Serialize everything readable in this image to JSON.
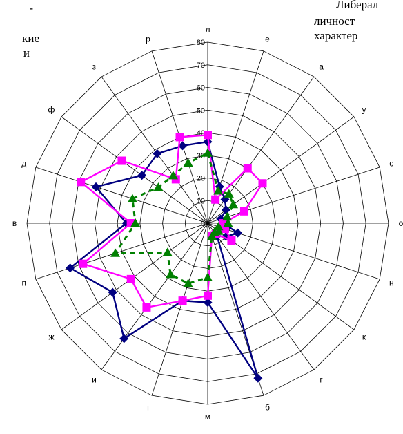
{
  "page_text": {
    "left_fragments": [
      "-",
      "кие",
      "и"
    ],
    "right_fragments": [
      "Либерал",
      "личност",
      "характер"
    ]
  },
  "chart_data": {
    "type": "radar",
    "title": "",
    "categories": [
      "л",
      "е",
      "а",
      "у",
      "с",
      "о",
      "н",
      "к",
      "г",
      "б",
      "м",
      "т",
      "и",
      "ж",
      "п",
      "в",
      "д",
      "ф",
      "з",
      "р"
    ],
    "r_ticks": [
      0,
      10,
      20,
      30,
      40,
      50,
      60,
      70,
      80
    ],
    "rlim": [
      0,
      80
    ],
    "grid": true,
    "series": [
      {
        "marker": "diamond",
        "color": "#000080",
        "dash": false,
        "values": [
          36,
          17,
          13,
          10,
          6,
          7,
          14,
          10,
          7,
          72,
          35,
          36,
          63,
          52,
          64,
          36,
          52,
          36,
          38,
          36
        ]
      },
      {
        "marker": "square",
        "color": "#FF00FF",
        "dash": false,
        "values": [
          39,
          11,
          30,
          30,
          17,
          7,
          8,
          13,
          6,
          6,
          32,
          36,
          46,
          42,
          58,
          34,
          59,
          47,
          24,
          40
        ]
      },
      {
        "marker": "triangle",
        "color": "#008000",
        "dash": true,
        "values": [
          31,
          15,
          16,
          14,
          9,
          9,
          5,
          6,
          5,
          6,
          24,
          28,
          28,
          22,
          43,
          32,
          35,
          27,
          26,
          28
        ]
      }
    ]
  }
}
